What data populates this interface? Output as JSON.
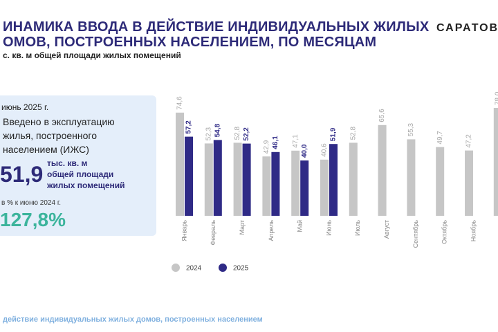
{
  "header": {
    "title_lines": [
      "ИНАМИКА ВВОДА В ДЕЙСТВИЕ ИНДИВИДУАЛЬНЫХ ЖИЛЫХ",
      "ОМОВ, ПОСТРОЕННЫХ НАСЕЛЕНИЕМ, ПО МЕСЯЦАМ"
    ],
    "subtitle": "с. кв. м общей площади жилых помещений",
    "brand": "САРАТОВС"
  },
  "card": {
    "period": "июнь 2025 г.",
    "description": [
      "Введено в эксплуатацию",
      "жилья, построенного",
      "населением (ИЖС)"
    ],
    "value": "51,9",
    "unit": [
      "тыс. кв. м",
      "общей площади",
      "жилых помещений"
    ],
    "compare_label": "в % к  июню 2024 г.",
    "compare_value": "127,8%"
  },
  "footer": "действие индивидуальных жилых домов, построенных населением",
  "chart_data": {
    "type": "bar",
    "categories": [
      "Январь",
      "Февраль",
      "Март",
      "Апрель",
      "Май",
      "Июнь",
      "Июль",
      "Август",
      "Сентябрь",
      "Октябрь",
      "Ноябрь",
      null
    ],
    "series": [
      {
        "name": "2024",
        "color": "#c6c6c6",
        "label_color": "#a8a8a8",
        "values": [
          74.6,
          52.3,
          52.8,
          42.9,
          47.1,
          40.6,
          52.8,
          65.6,
          55.3,
          49.7,
          47.2,
          78.0
        ],
        "value_labels": [
          "74,6",
          "52,3",
          "52,8",
          "42,9",
          "47,1",
          "40,6",
          "52,8",
          "65,6",
          "55,3",
          "49,7",
          "47,2",
          "78,0"
        ]
      },
      {
        "name": "2025",
        "color": "#2f2a86",
        "label_color": "#2f2a86",
        "values": [
          57.2,
          54.8,
          52.2,
          46.1,
          40.0,
          51.9,
          null,
          null,
          null,
          null,
          null,
          null
        ],
        "value_labels": [
          "57,2",
          "54,8",
          "52,2",
          "46,1",
          "40,0",
          "51,9",
          null,
          null,
          null,
          null,
          null,
          null
        ]
      }
    ]
  }
}
